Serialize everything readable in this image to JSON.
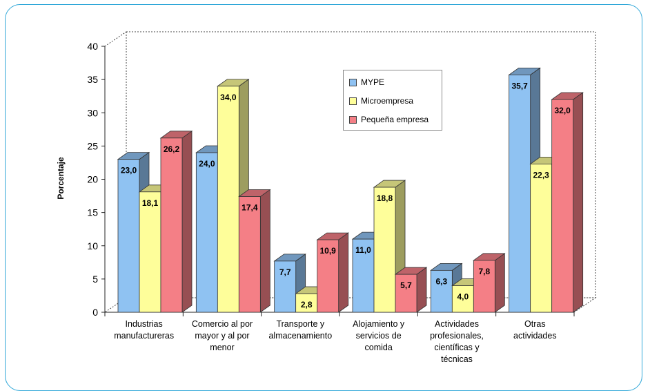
{
  "chart_data": {
    "type": "bar",
    "title": "",
    "xlabel": "",
    "ylabel": "Porcentaje",
    "ylim": [
      0,
      40
    ],
    "yticks": [
      "0",
      "5",
      "10",
      "15",
      "20",
      "25",
      "30",
      "35",
      "40"
    ],
    "grid": false,
    "legend_position": "top-center",
    "categories": [
      [
        "Industrias",
        "manufactureras"
      ],
      [
        "Comercio al por",
        "mayor y al por",
        "menor"
      ],
      [
        "Transporte y",
        "almacenamiento"
      ],
      [
        "Alojamiento y",
        "servicios de",
        "comida"
      ],
      [
        "Actividades",
        "profesionales,",
        "científicas y",
        "técnicas"
      ],
      [
        "Otras",
        "actividades"
      ]
    ],
    "series": [
      {
        "name": "MYPE",
        "color": "#8fc2f2",
        "values": [
          23.0,
          24.0,
          7.7,
          11.0,
          6.3,
          35.7
        ],
        "labels": [
          "23,0",
          "24,0",
          "7,7",
          "11,0",
          "6,3",
          "35,7"
        ]
      },
      {
        "name": "Microempresa",
        "color": "#fefe9a",
        "values": [
          18.1,
          34.0,
          2.8,
          18.8,
          4.0,
          22.3
        ],
        "labels": [
          "18,1",
          "34,0",
          "2,8",
          "18,8",
          "4,0",
          "22,3"
        ]
      },
      {
        "name": "Pequeña empresa",
        "color": "#f47f86",
        "values": [
          26.2,
          17.4,
          10.9,
          5.7,
          7.8,
          32.0
        ],
        "labels": [
          "26,2",
          "17,4",
          "10,9",
          "5,7",
          "7,8",
          "32,0"
        ]
      }
    ]
  }
}
